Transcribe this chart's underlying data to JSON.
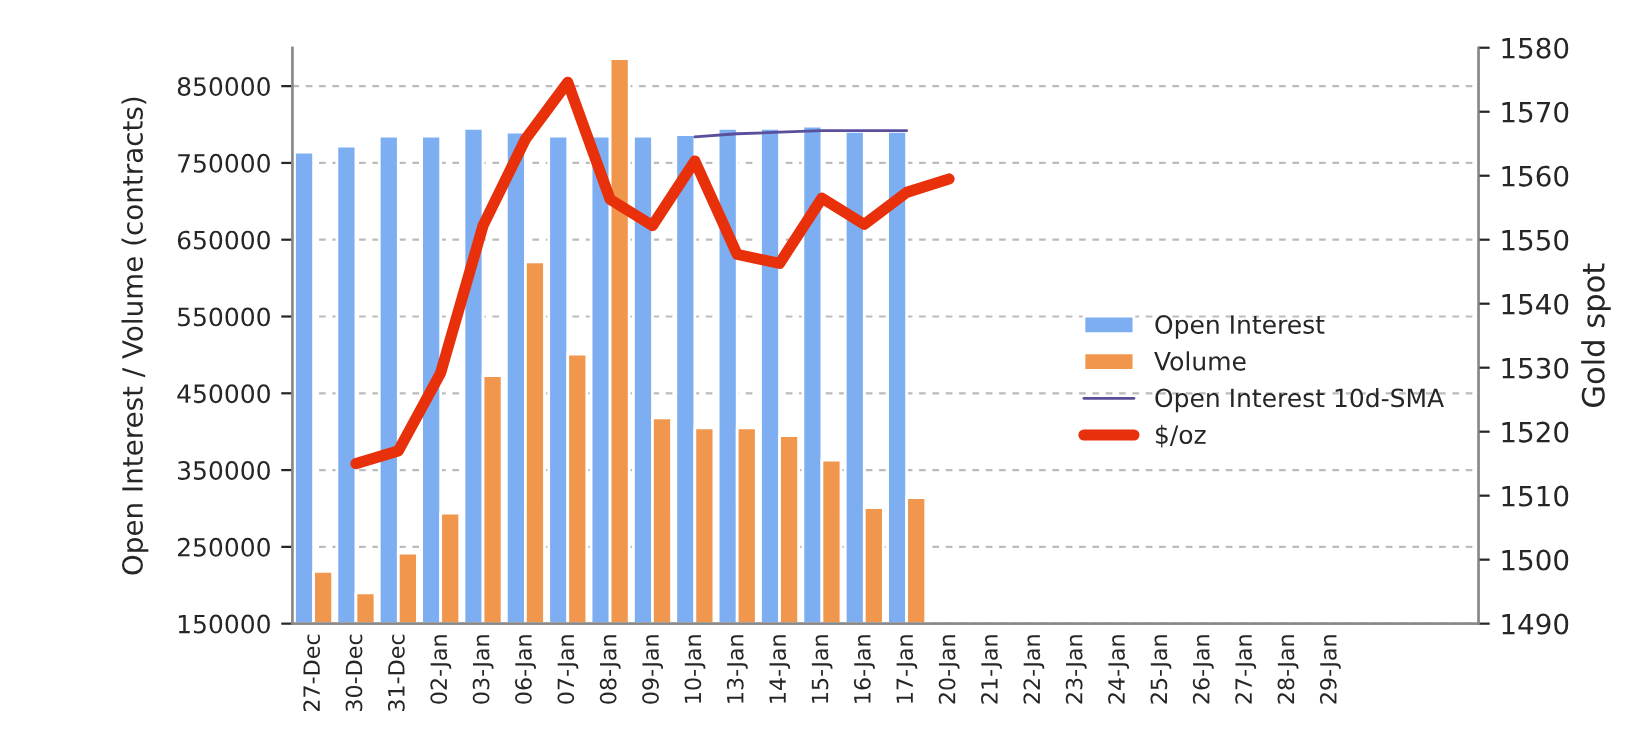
{
  "chart_data": {
    "type": "bar",
    "categories": [
      "27-Dec",
      "30-Dec",
      "31-Dec",
      "02-Jan",
      "03-Jan",
      "06-Jan",
      "07-Jan",
      "08-Jan",
      "09-Jan",
      "10-Jan",
      "13-Jan",
      "14-Jan",
      "15-Jan",
      "16-Jan",
      "17-Jan",
      "20-Jan",
      "21-Jan",
      "22-Jan",
      "23-Jan",
      "24-Jan",
      "25-Jan",
      "26-Jan",
      "27-Jan",
      "28-Jan",
      "29-Jan",
      null,
      null,
      null
    ],
    "series": [
      {
        "name": "Open Interest",
        "color": "#7eaef2",
        "values": [
          764000,
          772000,
          785000,
          785000,
          795000,
          790000,
          785000,
          785000,
          785000,
          787000,
          795000,
          795000,
          798000,
          791000,
          791000,
          null,
          null,
          null,
          null,
          null,
          null,
          null,
          null,
          null,
          null,
          null,
          null,
          null
        ]
      },
      {
        "name": "Volume",
        "color": "#f0974d",
        "values": [
          218000,
          190000,
          242000,
          294000,
          473000,
          621000,
          501000,
          886000,
          418000,
          405000,
          405000,
          395000,
          363000,
          301000,
          314000,
          null,
          null,
          null,
          null,
          null,
          null,
          null,
          null,
          null,
          null,
          null,
          null,
          null
        ]
      },
      {
        "name": "Open Interest 10d-SMA",
        "type": "line",
        "color": "#5a4f9a",
        "values": [
          null,
          null,
          null,
          null,
          null,
          null,
          null,
          null,
          null,
          784000,
          788000,
          790000,
          792000,
          792000,
          792000,
          null,
          null,
          null,
          null,
          null,
          null,
          null,
          null,
          null,
          null,
          null,
          null,
          null
        ]
      },
      {
        "name": "$/oz",
        "type": "line",
        "axis": "y2",
        "color": "#e8300a",
        "values": [
          null,
          1515,
          1517,
          1529.2,
          1552.2,
          1565.7,
          1574.6,
          1556.3,
          1552.2,
          1562.3,
          1547.7,
          1546.3,
          1556.5,
          1552.4,
          1557.4,
          1559.5,
          null,
          null,
          null,
          null,
          null,
          null,
          null,
          null,
          null,
          null,
          null,
          null
        ]
      }
    ],
    "ylabel": "Open Interest / Volume (contracts)",
    "y2label": "Gold spot",
    "ylim": [
      150000,
      900000
    ],
    "yticks": [
      150000,
      250000,
      350000,
      450000,
      550000,
      650000,
      750000,
      850000
    ],
    "y2lim": [
      1490,
      1580
    ],
    "y2ticks": [
      1490,
      1500,
      1510,
      1520,
      1530,
      1540,
      1550,
      1560,
      1570,
      1580
    ],
    "grid": "y",
    "legend": "right"
  }
}
